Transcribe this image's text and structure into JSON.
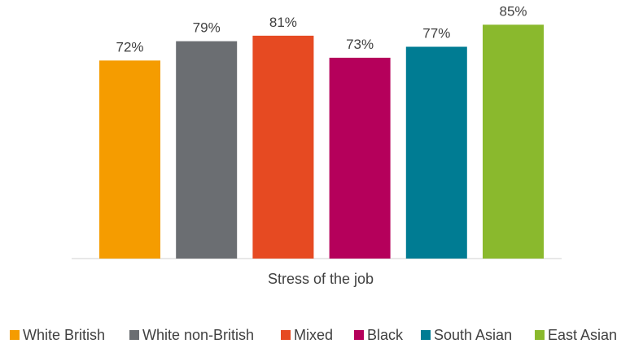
{
  "chart_data": {
    "type": "bar",
    "categories": [
      "Stress of the job"
    ],
    "series": [
      {
        "name": "White British",
        "values": [
          72
        ],
        "color": "#F59C00",
        "label": "72%"
      },
      {
        "name": "White non-British",
        "values": [
          79
        ],
        "color": "#6B6E72",
        "label": "79%"
      },
      {
        "name": "Mixed",
        "values": [
          81
        ],
        "color": "#E64A22",
        "label": "81%"
      },
      {
        "name": "Black",
        "values": [
          73
        ],
        "color": "#B5005B",
        "label": "73%"
      },
      {
        "name": "South Asian",
        "values": [
          77
        ],
        "color": "#007C93",
        "label": "77%"
      },
      {
        "name": "East Asian",
        "values": [
          85
        ],
        "color": "#8AB92D",
        "label": "85%"
      }
    ],
    "ylim": [
      0,
      90
    ],
    "value_unit": "%",
    "grid": false,
    "legend_position": "bottom"
  }
}
